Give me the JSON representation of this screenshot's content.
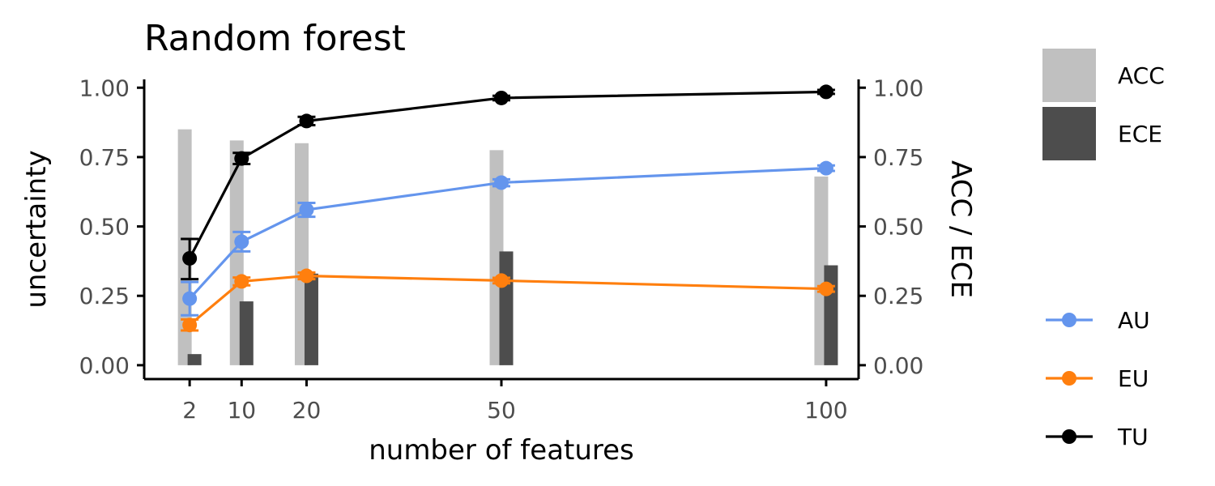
{
  "chart_data": {
    "type": "line",
    "title": "Random forest",
    "xlabel": "number of features",
    "ylabel": "uncertainty",
    "y2label": "ACC / ECE",
    "x": [
      2,
      10,
      20,
      50,
      100
    ],
    "x_tick_labels": [
      "2",
      "10",
      "20",
      "50",
      "100"
    ],
    "xlim": [
      -5,
      105
    ],
    "ylim": [
      -0.05,
      1.03
    ],
    "y_ticks": [
      0.0,
      0.25,
      0.5,
      0.75,
      1.0
    ],
    "y_tick_labels": [
      "0.00",
      "0.25",
      "0.50",
      "0.75",
      "1.00"
    ],
    "y2_tick_labels": [
      "0.00",
      "0.25",
      "0.50",
      "0.75",
      "1.00"
    ],
    "grid": false,
    "legend_placement": "right",
    "series": [
      {
        "name": "AU",
        "kind": "line",
        "color": "#6495ED",
        "values": [
          0.24,
          0.445,
          0.56,
          0.658,
          0.71
        ],
        "err_low": [
          0.18,
          0.41,
          0.535,
          0.645,
          0.7
        ],
        "err_high": [
          0.3,
          0.48,
          0.585,
          0.67,
          0.72
        ]
      },
      {
        "name": "EU",
        "kind": "line",
        "color": "#FF7F0E",
        "values": [
          0.145,
          0.302,
          0.322,
          0.305,
          0.275
        ],
        "err_low": [
          0.125,
          0.288,
          0.31,
          0.295,
          0.265
        ],
        "err_high": [
          0.165,
          0.316,
          0.334,
          0.315,
          0.285
        ]
      },
      {
        "name": "TU",
        "kind": "line",
        "color": "#000000",
        "values": [
          0.385,
          0.745,
          0.88,
          0.963,
          0.985
        ],
        "err_low": [
          0.31,
          0.725,
          0.865,
          0.955,
          0.978
        ],
        "err_high": [
          0.455,
          0.765,
          0.895,
          0.971,
          0.992
        ]
      },
      {
        "name": "ACC",
        "kind": "bar",
        "color": "#C0C0C0",
        "values": [
          0.85,
          0.81,
          0.8,
          0.775,
          0.68
        ]
      },
      {
        "name": "ECE",
        "kind": "bar",
        "color": "#4D4D4D",
        "values": [
          0.04,
          0.23,
          0.33,
          0.41,
          0.36
        ]
      }
    ]
  }
}
